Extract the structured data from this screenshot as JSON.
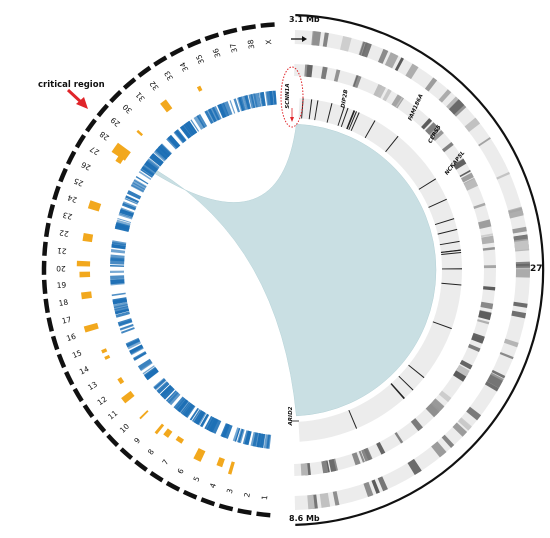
{
  "chromosomes": [
    "1",
    "2",
    "3",
    "4",
    "5",
    "6",
    "7",
    "8",
    "9",
    "10",
    "11",
    "12",
    "13",
    "14",
    "15",
    "16",
    "17",
    "18",
    "19",
    "20",
    "21",
    "22",
    "23",
    "24",
    "25",
    "26",
    "27",
    "28",
    "29",
    "30",
    "31",
    "32",
    "33",
    "34",
    "35",
    "36",
    "37",
    "38",
    "X"
  ],
  "zoom_chromosome": "27",
  "zoom_start_label": "3.1 Mb",
  "zoom_end_label": "8.6 Mb",
  "critical_region_label": "critical region",
  "gene_labels": [
    "SCNN1A",
    "DIP2B",
    "FAM186A",
    "CERS5",
    "NCKAP5L",
    "ARID2"
  ],
  "colors": {
    "chromosome_ring": "#111111",
    "association_hits": "#f2a81d",
    "snp_density": "#1d6fb5",
    "link_fill": "#c9dfe3",
    "gray_track": "#ececec",
    "highlight_ellipse": "#e0252a",
    "arrow": "#e0252a"
  },
  "icons": {
    "pointer": "arrow-icon",
    "strand": "strand-arrow-icon"
  }
}
